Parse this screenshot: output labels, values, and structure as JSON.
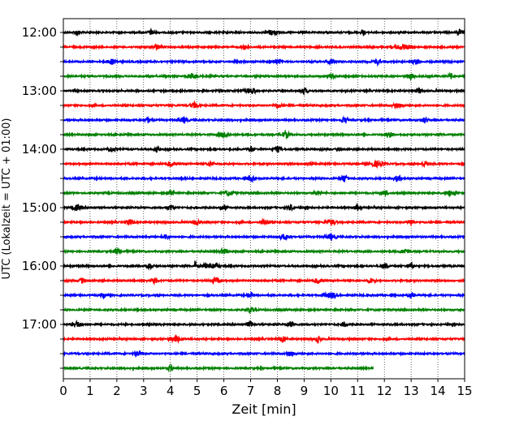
{
  "chart_data": {
    "type": "line",
    "title": "",
    "xlabel": "Zeit  [min]",
    "ylabel": "UTC (Lokalzeit = UTC + 01:00)",
    "xlim": [
      0,
      15
    ],
    "x_ticks": [
      0,
      1,
      2,
      3,
      4,
      5,
      6,
      7,
      8,
      9,
      10,
      11,
      12,
      13,
      14,
      15
    ],
    "x_tick_labels": [
      "0",
      "1",
      "2",
      "3",
      "4",
      "5",
      "6",
      "7",
      "8",
      "9",
      "10",
      "11",
      "12",
      "13",
      "14",
      "15"
    ],
    "y_tick_labels": [
      "12:00",
      "13:00",
      "14:00",
      "15:00",
      "16:00",
      "17:00"
    ],
    "grid_x": true,
    "color_cycle": [
      "#000000",
      "#ff0000",
      "#0000ff",
      "#008000"
    ],
    "series": [
      {
        "start": "12:00",
        "color": "#000000",
        "x_end": 15,
        "bursts": [
          [
            0.5,
            0.15
          ],
          [
            3.3,
            0.2
          ],
          [
            7.8,
            0.3
          ],
          [
            11.2,
            0.12
          ],
          [
            14.8,
            0.15
          ]
        ]
      },
      {
        "start": "12:15",
        "color": "#ff0000",
        "x_end": 15,
        "bursts": [
          [
            3.5,
            0.2
          ],
          [
            6.8,
            0.2
          ],
          [
            12.7,
            0.45
          ]
        ]
      },
      {
        "start": "12:30",
        "color": "#0000ff",
        "x_end": 15,
        "bursts": [
          [
            1.8,
            0.25
          ],
          [
            8.0,
            0.2
          ],
          [
            10.0,
            0.2
          ],
          [
            11.7,
            0.2
          ],
          [
            13.2,
            0.2
          ]
        ]
      },
      {
        "start": "12:45",
        "color": "#008000",
        "x_end": 15,
        "bursts": [
          [
            4.8,
            0.25
          ],
          [
            10.0,
            0.2
          ],
          [
            13.0,
            0.2
          ],
          [
            14.5,
            0.15
          ]
        ]
      },
      {
        "start": "13:00",
        "color": "#000000",
        "x_end": 15,
        "bursts": [
          [
            7.0,
            0.35
          ],
          [
            9.0,
            0.2
          ],
          [
            13.3,
            0.15
          ]
        ]
      },
      {
        "start": "13:15",
        "color": "#ff0000",
        "x_end": 15,
        "bursts": [
          [
            4.9,
            0.25
          ],
          [
            8.0,
            0.2
          ],
          [
            12.5,
            0.25
          ]
        ]
      },
      {
        "start": "13:30",
        "color": "#0000ff",
        "x_end": 15,
        "bursts": [
          [
            3.2,
            0.2
          ],
          [
            4.5,
            0.25
          ],
          [
            10.5,
            0.2
          ],
          [
            13.5,
            0.2
          ]
        ]
      },
      {
        "start": "13:45",
        "color": "#008000",
        "x_end": 15,
        "bursts": [
          [
            6.0,
            0.3
          ],
          [
            8.3,
            0.3
          ],
          [
            12.2,
            0.2
          ]
        ]
      },
      {
        "start": "14:00",
        "color": "#000000",
        "x_end": 15,
        "bursts": [
          [
            1.8,
            0.2
          ],
          [
            3.5,
            0.15
          ],
          [
            7.0,
            0.2
          ],
          [
            8.0,
            0.2
          ]
        ]
      },
      {
        "start": "14:15",
        "color": "#ff0000",
        "x_end": 15,
        "bursts": [
          [
            4.0,
            0.2
          ],
          [
            5.5,
            0.2
          ],
          [
            9.2,
            0.2
          ],
          [
            11.7,
            0.4
          ],
          [
            13.5,
            0.15
          ]
        ]
      },
      {
        "start": "14:30",
        "color": "#0000ff",
        "x_end": 15,
        "bursts": [
          [
            7.0,
            0.2
          ],
          [
            10.5,
            0.2
          ],
          [
            12.5,
            0.25
          ]
        ]
      },
      {
        "start": "14:45",
        "color": "#008000",
        "x_end": 15,
        "bursts": [
          [
            4.0,
            0.2
          ],
          [
            6.2,
            0.3
          ],
          [
            9.5,
            0.2
          ],
          [
            12.0,
            0.2
          ],
          [
            14.5,
            0.35
          ]
        ]
      },
      {
        "start": "15:00",
        "color": "#000000",
        "x_end": 15,
        "bursts": [
          [
            0.5,
            0.25
          ],
          [
            4.0,
            0.2
          ],
          [
            6.0,
            0.2
          ],
          [
            8.5,
            0.2
          ],
          [
            11.0,
            0.2
          ]
        ]
      },
      {
        "start": "15:15",
        "color": "#ff0000",
        "x_end": 15,
        "bursts": [
          [
            2.5,
            0.2
          ],
          [
            5.0,
            0.2
          ],
          [
            7.5,
            0.2
          ],
          [
            10.0,
            0.3
          ],
          [
            13.0,
            0.2
          ]
        ]
      },
      {
        "start": "15:30",
        "color": "#0000ff",
        "x_end": 15,
        "bursts": [
          [
            3.8,
            0.2
          ],
          [
            8.3,
            0.3
          ],
          [
            10.0,
            0.3
          ]
        ]
      },
      {
        "start": "15:45",
        "color": "#008000",
        "x_end": 15,
        "bursts": [
          [
            2.0,
            0.2
          ],
          [
            6.0,
            0.2
          ],
          [
            12.8,
            0.25
          ]
        ]
      },
      {
        "start": "16:00",
        "color": "#000000",
        "x_end": 15,
        "bursts": [
          [
            3.2,
            0.25
          ],
          [
            4.93,
            0.04,
            9.0
          ],
          [
            5.5,
            0.45
          ],
          [
            12.0,
            0.2
          ],
          [
            13.0,
            0.2
          ]
        ]
      },
      {
        "start": "16:15",
        "color": "#ff0000",
        "x_end": 15,
        "bursts": [
          [
            0.7,
            0.2
          ],
          [
            3.4,
            0.2
          ],
          [
            5.7,
            0.25
          ],
          [
            9.5,
            0.2
          ],
          [
            11.5,
            0.2
          ]
        ]
      },
      {
        "start": "16:30",
        "color": "#0000ff",
        "x_end": 15,
        "bursts": [
          [
            1.5,
            0.15
          ],
          [
            7.0,
            0.15
          ],
          [
            10.0,
            0.45
          ],
          [
            13.0,
            0.2
          ]
        ]
      },
      {
        "start": "16:45",
        "color": "#008000",
        "x_end": 15,
        "bursts": [
          [
            7.0,
            0.2
          ]
        ]
      },
      {
        "start": "17:00",
        "color": "#000000",
        "x_end": 15,
        "bursts": [
          [
            0.5,
            0.3
          ],
          [
            7.0,
            0.2
          ],
          [
            8.5,
            0.2
          ],
          [
            10.5,
            0.15
          ]
        ]
      },
      {
        "start": "17:15",
        "color": "#ff0000",
        "x_end": 15,
        "bursts": [
          [
            4.2,
            0.35
          ],
          [
            8.2,
            0.2
          ],
          [
            9.5,
            0.2
          ]
        ]
      },
      {
        "start": "17:30",
        "color": "#0000ff",
        "x_end": 15,
        "bursts": [
          [
            2.8,
            0.2
          ],
          [
            8.5,
            0.2
          ]
        ]
      },
      {
        "start": "17:45",
        "color": "#008000",
        "x_end": 11.6,
        "bursts": [
          [
            4.0,
            0.15
          ]
        ]
      }
    ]
  }
}
